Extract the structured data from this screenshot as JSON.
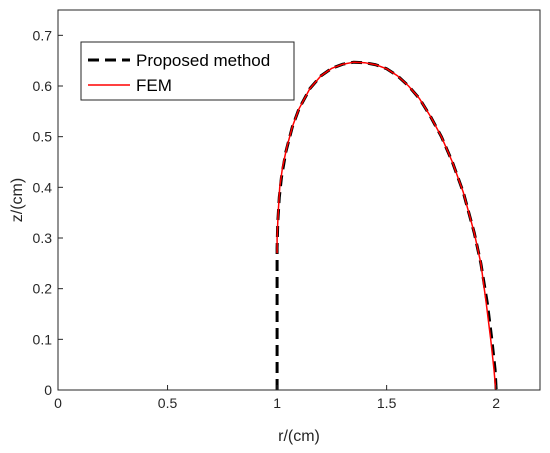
{
  "chart_data": {
    "type": "line",
    "xlabel": "r/(cm)",
    "ylabel": "z/(cm)",
    "xlim": [
      0,
      2.2
    ],
    "ylim": [
      0,
      0.75
    ],
    "x_ticks": [
      0,
      0.5,
      1,
      1.5,
      2
    ],
    "y_ticks": [
      0,
      0.1,
      0.2,
      0.3,
      0.4,
      0.5,
      0.6,
      0.7
    ],
    "x_tick_labels": [
      "0",
      "0.5",
      "1",
      "1.5",
      "2"
    ],
    "y_tick_labels": [
      "0",
      "0.1",
      "0.2",
      "0.3",
      "0.4",
      "0.5",
      "0.6",
      "0.7"
    ],
    "grid": false,
    "legend_position": "top-left",
    "series": [
      {
        "name": "Proposed method",
        "style": "dashed",
        "color": "#000000",
        "x": [
          1.0,
          1.0,
          1.0,
          1.003,
          1.01,
          1.02,
          1.04,
          1.07,
          1.1,
          1.15,
          1.2,
          1.25,
          1.3,
          1.35,
          1.4,
          1.45,
          1.5,
          1.55,
          1.6,
          1.65,
          1.7,
          1.75,
          1.8,
          1.85,
          1.9,
          1.93,
          1.96,
          1.98,
          1.995,
          2.0
        ],
        "y": [
          0.0,
          0.14,
          0.28,
          0.33,
          0.38,
          0.42,
          0.47,
          0.52,
          0.555,
          0.595,
          0.62,
          0.635,
          0.643,
          0.647,
          0.646,
          0.642,
          0.634,
          0.62,
          0.6,
          0.575,
          0.54,
          0.5,
          0.45,
          0.39,
          0.31,
          0.25,
          0.17,
          0.1,
          0.04,
          0.0
        ]
      },
      {
        "name": "FEM",
        "style": "solid",
        "color": "#ff0000",
        "x": [
          1.0,
          1.0,
          1.005,
          1.012,
          1.025,
          1.045,
          1.07,
          1.1,
          1.15,
          1.2,
          1.25,
          1.3,
          1.35,
          1.4,
          1.45,
          1.5,
          1.55,
          1.6,
          1.65,
          1.7,
          1.75,
          1.8,
          1.85,
          1.9,
          1.93,
          1.955,
          1.975,
          1.99,
          1.998
        ],
        "y": [
          0.27,
          0.3,
          0.35,
          0.4,
          0.44,
          0.48,
          0.52,
          0.555,
          0.595,
          0.62,
          0.635,
          0.643,
          0.647,
          0.646,
          0.642,
          0.634,
          0.62,
          0.6,
          0.575,
          0.54,
          0.5,
          0.45,
          0.39,
          0.31,
          0.25,
          0.17,
          0.1,
          0.04,
          0.0
        ]
      }
    ]
  }
}
